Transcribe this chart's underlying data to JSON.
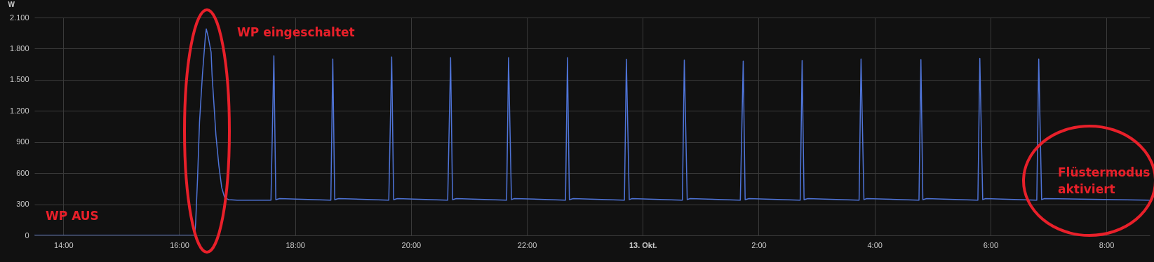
{
  "chart_data": {
    "type": "line",
    "ylabel": "W",
    "x": [
      "--10-12T13:30",
      "--10-12T16:16",
      "--10-12T16:17",
      "--10-12T16:19",
      "--10-12T16:21",
      "--10-12T16:24",
      "--10-12T16:27",
      "--10-12T16:28",
      "--10-12T16:30",
      "--10-12T16:33",
      "--10-12T16:34",
      "--10-12T16:36",
      "--10-12T16:38",
      "--10-12T16:41",
      "--10-12T16:44",
      "--10-12T16:47",
      "--10-12T16:51",
      "--10-12T17:00",
      "--10-12T17:35",
      "--10-12T17:38",
      "--10-12T17:40",
      "--10-12T17:44",
      "--10-12T18:37",
      "--10-12T18:39",
      "--10-12T18:41",
      "--10-12T18:45",
      "--10-12T19:37",
      "--10-12T19:40",
      "--10-12T19:42",
      "--10-12T19:46",
      "--10-12T20:38",
      "--10-12T20:41",
      "--10-12T20:43",
      "--10-12T20:47",
      "--10-12T21:39",
      "--10-12T21:41",
      "--10-12T21:44",
      "--10-12T21:47",
      "--10-12T22:40",
      "--10-12T22:42",
      "--10-12T22:44",
      "--10-12T22:48",
      "--10-12T23:41",
      "--10-12T23:43",
      "--10-12T23:46",
      "--10-12T23:49",
      "--10-13T00:41",
      "--10-13T00:43",
      "--10-13T00:46",
      "--10-13T00:49",
      "--10-13T01:41",
      "--10-13T01:44",
      "--10-13T01:46",
      "--10-13T01:50",
      "--10-13T02:43",
      "--10-13T02:45",
      "--10-13T02:47",
      "--10-13T02:51",
      "--10-13T03:44",
      "--10-13T03:46",
      "--10-13T03:49",
      "--10-13T03:52",
      "--10-13T04:46",
      "--10-13T04:48",
      "--10-13T04:50",
      "--10-13T04:54",
      "--10-13T05:47",
      "--10-13T05:49",
      "--10-13T05:52",
      "--10-13T05:55",
      "--10-13T06:48",
      "--10-13T06:50",
      "--10-13T06:53",
      "--10-13T06:56",
      "--10-13T08:45"
    ],
    "series": [
      {
        "color": "#4f74d8",
        "values": [
          0,
          0,
          120,
          556,
          1090,
          1545,
          1910,
          1990,
          1915,
          1765,
          1545,
          1255,
          965,
          675,
          460,
          365,
          345,
          340,
          340,
          1730,
          345,
          355,
          340,
          1700,
          345,
          355,
          340,
          1720,
          345,
          355,
          340,
          1713,
          345,
          355,
          340,
          1713,
          345,
          355,
          340,
          1713,
          345,
          355,
          340,
          1698,
          345,
          355,
          340,
          1690,
          345,
          355,
          340,
          1680,
          345,
          355,
          340,
          1685,
          345,
          355,
          340,
          1700,
          345,
          355,
          340,
          1695,
          345,
          355,
          340,
          1705,
          345,
          355,
          340,
          1700,
          345,
          355,
          340
        ]
      }
    ],
    "xlim": [
      "--10-12T13:30",
      "--10-13T08:45"
    ],
    "xticks": [
      {
        "value": "--10-12T14:00",
        "label": "14:00"
      },
      {
        "value": "--10-12T16:00",
        "label": "16:00"
      },
      {
        "value": "--10-12T18:00",
        "label": "18:00"
      },
      {
        "value": "--10-12T20:00",
        "label": "20:00"
      },
      {
        "value": "--10-12T22:00",
        "label": "22:00"
      },
      {
        "value": "--10-13T00:00",
        "label": "13. Okt."
      },
      {
        "value": "--10-13T02:00",
        "label": "2:00"
      },
      {
        "value": "--10-13T04:00",
        "label": "4:00"
      },
      {
        "value": "--10-13T06:00",
        "label": "6:00"
      },
      {
        "value": "--10-13T08:00",
        "label": "8:00"
      }
    ],
    "ylim": [
      0,
      2100
    ],
    "yticks": [
      0,
      300,
      600,
      900,
      {
        "value": 1200,
        "label": "1.200"
      },
      {
        "value": 1500,
        "label": "1.500"
      },
      {
        "value": 1800,
        "label": "1.800"
      },
      {
        "value": 2100,
        "label": "2.100"
      }
    ],
    "grid": true,
    "marker": "none",
    "line_style": "solid",
    "annotations": [
      "WP eingeschaltet",
      "WP AUS",
      "Flüstermodus\naktiviert"
    ]
  }
}
